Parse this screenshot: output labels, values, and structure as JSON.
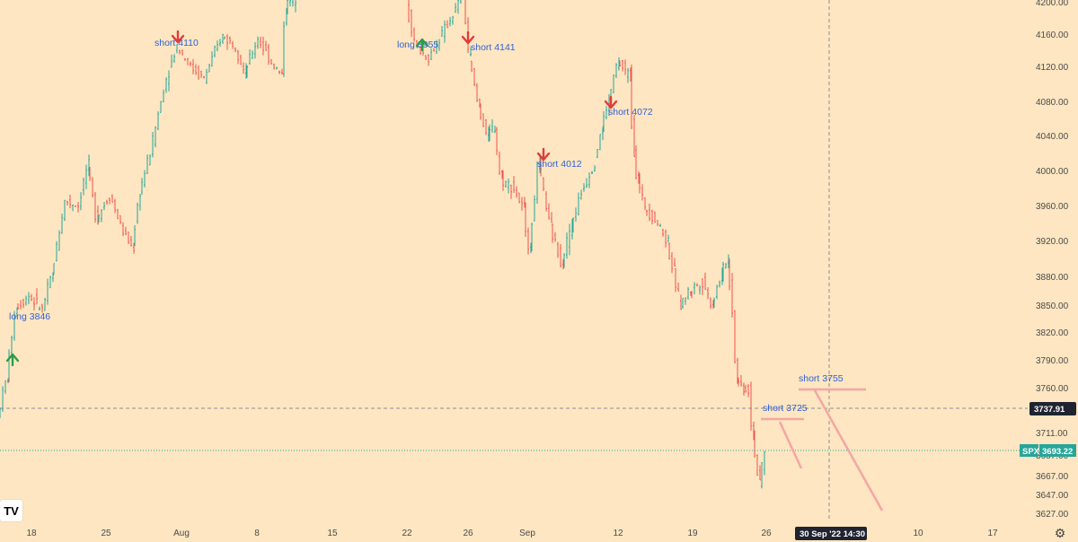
{
  "chart_data": {
    "type": "ohlc",
    "symbol": "SPX",
    "last_price": "3693.22",
    "crosshair_price": "3737.91",
    "crosshair_date": "30 Sep '22",
    "crosshair_time": "14:30",
    "y_ticks": [
      "4200.00",
      "4160.00",
      "4120.00",
      "4080.00",
      "4040.00",
      "4000.00",
      "3960.00",
      "3920.00",
      "3880.00",
      "3850.00",
      "3820.00",
      "3790.00",
      "3760.00",
      "3737.91",
      "3711.00",
      "3687.00",
      "3667.00",
      "3647.00",
      "3627.00"
    ],
    "x_ticks": [
      "18",
      "25",
      "Aug",
      "8",
      "15",
      "22",
      "26",
      "Sep",
      "12",
      "19",
      "26",
      "10",
      "17"
    ],
    "series_path": [
      [
        0,
        3729
      ],
      [
        10,
        3770
      ],
      [
        20,
        3848
      ],
      [
        35,
        3860
      ],
      [
        50,
        3845
      ],
      [
        60,
        3880
      ],
      [
        75,
        3965
      ],
      [
        90,
        3960
      ],
      [
        100,
        4005
      ],
      [
        110,
        3945
      ],
      [
        125,
        3972
      ],
      [
        140,
        3930
      ],
      [
        150,
        3912
      ],
      [
        158,
        3975
      ],
      [
        170,
        4020
      ],
      [
        185,
        4095
      ],
      [
        200,
        4146
      ],
      [
        215,
        4120
      ],
      [
        230,
        4106
      ],
      [
        250,
        4158
      ],
      [
        265,
        4146
      ],
      [
        275,
        4112
      ],
      [
        290,
        4155
      ],
      [
        305,
        4125
      ],
      [
        316,
        4110
      ],
      [
        320,
        4195
      ],
      [
        330,
        4205
      ],
      [
        455,
        4200
      ],
      [
        465,
        4146
      ],
      [
        480,
        4130
      ],
      [
        495,
        4160
      ],
      [
        510,
        4190
      ],
      [
        518,
        4210
      ],
      [
        525,
        4130
      ],
      [
        535,
        4075
      ],
      [
        545,
        4040
      ],
      [
        553,
        4050
      ],
      [
        560,
        3990
      ],
      [
        575,
        3980
      ],
      [
        585,
        3955
      ],
      [
        592,
        3910
      ],
      [
        602,
        4012
      ],
      [
        615,
        3935
      ],
      [
        628,
        3895
      ],
      [
        638,
        3935
      ],
      [
        650,
        3975
      ],
      [
        665,
        4010
      ],
      [
        672,
        4048
      ],
      [
        680,
        4080
      ],
      [
        690,
        4125
      ],
      [
        703,
        4110
      ],
      [
        708,
        4020
      ],
      [
        712,
        3990
      ],
      [
        720,
        3960
      ],
      [
        735,
        3940
      ],
      [
        745,
        3920
      ],
      [
        752,
        3885
      ],
      [
        760,
        3850
      ],
      [
        770,
        3865
      ],
      [
        785,
        3875
      ],
      [
        795,
        3850
      ],
      [
        805,
        3880
      ],
      [
        812,
        3900
      ],
      [
        818,
        3845
      ],
      [
        822,
        3770
      ],
      [
        830,
        3760
      ],
      [
        836,
        3757
      ],
      [
        840,
        3710
      ],
      [
        848,
        3655
      ],
      [
        852,
        3687
      ]
    ],
    "annotations": [
      {
        "label": "short 4110",
        "signal": "short"
      },
      {
        "label": "long 3955",
        "signal": "long"
      },
      {
        "label": "short 4141",
        "signal": "short"
      },
      {
        "label": "short  4012",
        "signal": "short"
      },
      {
        "label": "short  4072",
        "signal": "short"
      },
      {
        "label": "long  3846",
        "signal": "long"
      },
      {
        "label": "short 3725",
        "signal": "short"
      },
      {
        "label": "short 3755",
        "signal": "short"
      }
    ]
  },
  "ui": {
    "logo_text": "TV",
    "settings_icon": "gear-icon"
  },
  "colors": {
    "background": "#fde6c1",
    "up": "#26a69a",
    "down": "#ef5350",
    "note": "#2f5fd8",
    "drawing": "#f4a6a6",
    "badge_dark": "#1f2430",
    "badge_green": "#26a69a"
  }
}
